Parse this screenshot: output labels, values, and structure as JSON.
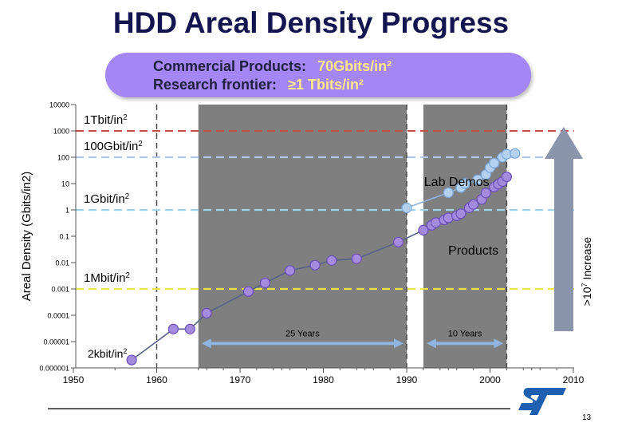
{
  "slide_title": "HDD Areal Density Progress",
  "banner": {
    "line1_label": "Commercial Products:",
    "line1_value": "70Gbits/in²",
    "line2_label": "Research frontier:",
    "line2_value": "≥1 Tbits/in²",
    "background_color": "#a586f5"
  },
  "page_number": "13",
  "logo": "st-logo",
  "chart_data": {
    "type": "scatter",
    "title": "",
    "xlabel": "",
    "ylabel": "Areal Density (Gbits/in2)",
    "xlim": [
      1950,
      2010
    ],
    "ylim": [
      1e-06,
      10000
    ],
    "yscale": "log",
    "x_ticks": [
      1950,
      1960,
      1970,
      1980,
      1990,
      2000,
      2010
    ],
    "y_ticks": [
      {
        "value": 10000,
        "label": "10000"
      },
      {
        "value": 1000,
        "label": "1000"
      },
      {
        "value": 100,
        "label": "100"
      },
      {
        "value": 10,
        "label": "10"
      },
      {
        "value": 1,
        "label": "1"
      },
      {
        "value": 0.1,
        "label": "0.1"
      },
      {
        "value": 0.01,
        "label": "0.01"
      },
      {
        "value": 0.001,
        "label": "0.001"
      },
      {
        "value": 0.0001,
        "label": "0.0001"
      },
      {
        "value": 1e-05,
        "label": "0.00001"
      },
      {
        "value": 1e-06,
        "label": "0.000001"
      }
    ],
    "shaded_periods": [
      [
        1965,
        1990
      ],
      [
        1992,
        2002
      ]
    ],
    "dashed_year_lines": [
      1960,
      1990,
      2002
    ],
    "reference_lines": [
      {
        "label": "1Tbit/in²",
        "value": 1000,
        "color": "#c0504d"
      },
      {
        "label": "100Gbit/in²",
        "value": 100,
        "color": "#b0c8e8"
      },
      {
        "label": "1Gbit/in²",
        "value": 1,
        "color": "#9fd3ec"
      },
      {
        "label": "1Mbit/in²",
        "value": 0.001,
        "color": "#e6e64a"
      },
      {
        "label": "2kbit/in²",
        "value": 2e-06,
        "color": "#3cb8d8"
      }
    ],
    "series": [
      {
        "name": "Products",
        "color": "#a58bde",
        "points": [
          [
            1957,
            2e-06
          ],
          [
            1962,
            3e-05
          ],
          [
            1964,
            3e-05
          ],
          [
            1966,
            0.00012
          ],
          [
            1971,
            0.0008
          ],
          [
            1973,
            0.0017
          ],
          [
            1976,
            0.005
          ],
          [
            1979,
            0.008
          ],
          [
            1981,
            0.012
          ],
          [
            1984,
            0.014
          ],
          [
            1989,
            0.06
          ],
          [
            1992,
            0.17
          ],
          [
            1993,
            0.26
          ],
          [
            1993.5,
            0.33
          ],
          [
            1994.5,
            0.42
          ],
          [
            1995,
            0.5
          ],
          [
            1996,
            0.6
          ],
          [
            1996.5,
            0.72
          ],
          [
            1997.5,
            1.2
          ],
          [
            1998,
            1.6
          ],
          [
            1999,
            2.5
          ],
          [
            1999.5,
            4.4
          ],
          [
            2000.5,
            7.4
          ],
          [
            2001,
            9.5
          ],
          [
            2001.5,
            12
          ],
          [
            2002,
            18
          ]
        ]
      },
      {
        "name": "Lab Demos",
        "color": "#b4d2f0",
        "points": [
          [
            1990,
            1.2
          ],
          [
            1995,
            4.5
          ],
          [
            1996.5,
            7
          ],
          [
            1997,
            10
          ],
          [
            1998.5,
            14
          ],
          [
            1999.5,
            22
          ],
          [
            2000,
            40
          ],
          [
            2000.5,
            60
          ],
          [
            2001.5,
            100
          ],
          [
            2002,
            130
          ],
          [
            2003,
            140
          ]
        ]
      }
    ],
    "annotations": [
      {
        "text": "Lab Demos",
        "x": 1996,
        "y": 8
      },
      {
        "text": "Products",
        "x": 1998,
        "y": 0.02
      },
      {
        "text": "25 Years",
        "x": 1977.5,
        "y": 1.6e-05,
        "span": [
          1965,
          1990
        ]
      },
      {
        "text": "10 Years",
        "x": 1997,
        "y": 1.6e-05,
        "span": [
          1992,
          2002
        ]
      },
      {
        "text": ">10⁷ Increase",
        "x": 2007,
        "y": 0.01,
        "color": "#8a94aa"
      }
    ]
  }
}
